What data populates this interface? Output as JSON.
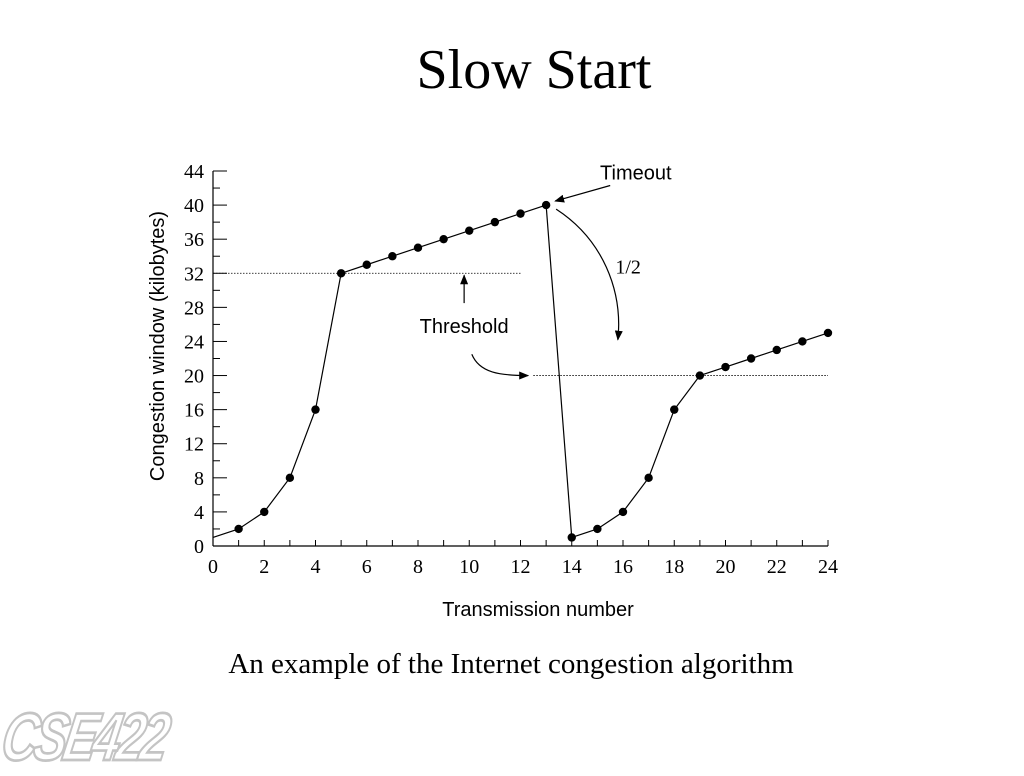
{
  "slide": {
    "title": "Slow Start",
    "caption": "An example of the Internet congestion algorithm",
    "logo_text": "CSE422"
  },
  "chart_data": {
    "type": "line",
    "title": "Slow Start",
    "xlabel": "Transmission number",
    "ylabel": "Congestion window (kilobytes)",
    "xlim": [
      0,
      24
    ],
    "ylim": [
      0,
      44
    ],
    "xticks": [
      0,
      2,
      4,
      6,
      8,
      10,
      12,
      14,
      16,
      18,
      20,
      22,
      24
    ],
    "yticks": [
      0,
      4,
      8,
      12,
      16,
      20,
      24,
      28,
      32,
      36,
      40,
      44
    ],
    "grid": false,
    "series": [
      {
        "name": "",
        "x": [
          0,
          1,
          2,
          3,
          4,
          5,
          6,
          7,
          8,
          9,
          10,
          11,
          12,
          13,
          14,
          15,
          16,
          17,
          18,
          19,
          20,
          21,
          22,
          23,
          24
        ],
        "y": [
          1,
          2,
          4,
          8,
          16,
          32,
          33,
          34,
          35,
          36,
          37,
          38,
          39,
          40,
          1,
          2,
          4,
          8,
          16,
          20,
          21,
          22,
          23,
          24,
          25
        ],
        "markers_from_x": 1
      }
    ],
    "threshold_lines": [
      {
        "value": 32,
        "x_from": 0,
        "x_to": 12
      },
      {
        "value": 20,
        "x_from": 12.5,
        "x_to": 24
      }
    ],
    "annotations": [
      {
        "text": "Timeout",
        "x": 16.5,
        "y": 43
      },
      {
        "text": "1/2",
        "x": 16.2,
        "y": 32
      },
      {
        "text": "Threshold",
        "x": 9.8,
        "y": 25
      }
    ]
  }
}
